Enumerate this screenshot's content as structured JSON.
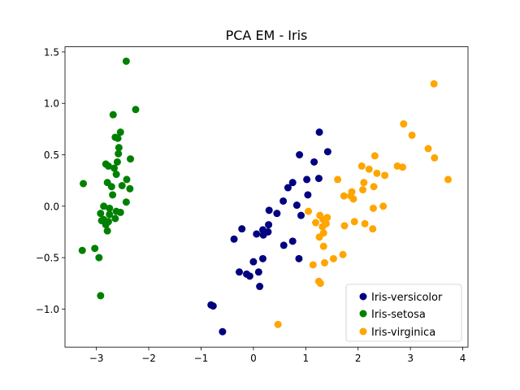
{
  "chart_data": {
    "type": "scatter",
    "title": "PCA EM - Iris",
    "xlabel": "",
    "ylabel": "",
    "xlim": [
      -3.6,
      4.1
    ],
    "ylim": [
      -1.37,
      1.55
    ],
    "xticks": [
      -3,
      -2,
      -1,
      0,
      1,
      2,
      3,
      4
    ],
    "xtick_labels": [
      "−3",
      "−2",
      "−1",
      "0",
      "1",
      "2",
      "3",
      "4"
    ],
    "yticks": [
      -1.0,
      -0.5,
      0.0,
      0.5,
      1.0,
      1.5
    ],
    "ytick_labels": [
      "−1.0",
      "−0.5",
      "0.0",
      "0.5",
      "1.0",
      "1.5"
    ],
    "grid": false,
    "legend_position": "lower-right",
    "series": [
      {
        "name": "Iris-versicolor",
        "color": "#000080",
        "points": [
          [
            1.26,
            0.72
          ],
          [
            1.42,
            0.53
          ],
          [
            1.16,
            0.43
          ],
          [
            0.88,
            0.5
          ],
          [
            1.02,
            0.26
          ],
          [
            1.25,
            0.27
          ],
          [
            0.75,
            0.23
          ],
          [
            0.66,
            0.18
          ],
          [
            0.57,
            0.05
          ],
          [
            1.04,
            0.11
          ],
          [
            0.83,
            0.01
          ],
          [
            0.91,
            -0.09
          ],
          [
            0.45,
            -0.07
          ],
          [
            0.3,
            -0.04
          ],
          [
            0.29,
            -0.18
          ],
          [
            0.06,
            -0.27
          ],
          [
            0.18,
            -0.23
          ],
          [
            0.19,
            -0.28
          ],
          [
            0.28,
            -0.25
          ],
          [
            -0.22,
            -0.22
          ],
          [
            -0.37,
            -0.32
          ],
          [
            0.58,
            -0.38
          ],
          [
            0.75,
            -0.34
          ],
          [
            0.87,
            -0.51
          ],
          [
            0.18,
            -0.51
          ],
          [
            0.0,
            -0.54
          ],
          [
            -0.27,
            -0.64
          ],
          [
            -0.13,
            -0.66
          ],
          [
            -0.07,
            -0.68
          ],
          [
            0.1,
            -0.64
          ],
          [
            0.12,
            -0.78
          ],
          [
            -0.81,
            -0.96
          ],
          [
            -0.77,
            -0.97
          ],
          [
            -0.59,
            -1.22
          ]
        ]
      },
      {
        "name": "Iris-setosa",
        "color": "#008000",
        "points": [
          [
            -2.43,
            1.41
          ],
          [
            -2.25,
            0.94
          ],
          [
            -2.68,
            0.89
          ],
          [
            -2.54,
            0.72
          ],
          [
            -2.64,
            0.67
          ],
          [
            -2.59,
            0.66
          ],
          [
            -2.57,
            0.57
          ],
          [
            -2.58,
            0.51
          ],
          [
            -2.6,
            0.43
          ],
          [
            -2.35,
            0.46
          ],
          [
            -2.82,
            0.41
          ],
          [
            -2.77,
            0.39
          ],
          [
            -2.66,
            0.37
          ],
          [
            -2.62,
            0.31
          ],
          [
            -2.42,
            0.26
          ],
          [
            -2.79,
            0.23
          ],
          [
            -2.51,
            0.2
          ],
          [
            -3.25,
            0.22
          ],
          [
            -2.71,
            0.19
          ],
          [
            -2.36,
            0.17
          ],
          [
            -2.69,
            0.11
          ],
          [
            -2.43,
            0.04
          ],
          [
            -2.86,
            0.0
          ],
          [
            -2.75,
            -0.02
          ],
          [
            -2.62,
            -0.05
          ],
          [
            -2.54,
            -0.06
          ],
          [
            -2.92,
            -0.07
          ],
          [
            -2.75,
            -0.08
          ],
          [
            -2.86,
            -0.13
          ],
          [
            -2.9,
            -0.14
          ],
          [
            -2.77,
            -0.15
          ],
          [
            -2.64,
            -0.12
          ],
          [
            -2.82,
            -0.18
          ],
          [
            -2.79,
            -0.24
          ],
          [
            -3.03,
            -0.41
          ],
          [
            -3.27,
            -0.43
          ],
          [
            -2.95,
            -0.5
          ],
          [
            -2.92,
            -0.87
          ]
        ]
      },
      {
        "name": "Iris-virginica",
        "color": "#FFA500",
        "points": [
          [
            3.45,
            1.19
          ],
          [
            2.87,
            0.8
          ],
          [
            3.03,
            0.69
          ],
          [
            3.34,
            0.56
          ],
          [
            3.46,
            0.47
          ],
          [
            2.32,
            0.49
          ],
          [
            2.75,
            0.39
          ],
          [
            2.85,
            0.38
          ],
          [
            2.07,
            0.39
          ],
          [
            2.21,
            0.36
          ],
          [
            2.36,
            0.32
          ],
          [
            2.51,
            0.3
          ],
          [
            3.72,
            0.26
          ],
          [
            1.61,
            0.26
          ],
          [
            2.11,
            0.23
          ],
          [
            2.3,
            0.19
          ],
          [
            2.09,
            0.16
          ],
          [
            1.88,
            0.14
          ],
          [
            1.73,
            0.1
          ],
          [
            1.86,
            0.1
          ],
          [
            1.91,
            0.07
          ],
          [
            2.48,
            0.0
          ],
          [
            2.29,
            -0.02
          ],
          [
            1.05,
            -0.05
          ],
          [
            1.41,
            -0.11
          ],
          [
            1.27,
            -0.09
          ],
          [
            1.33,
            -0.13
          ],
          [
            1.93,
            -0.15
          ],
          [
            1.74,
            -0.19
          ],
          [
            2.13,
            -0.17
          ],
          [
            1.19,
            -0.16
          ],
          [
            1.39,
            -0.17
          ],
          [
            1.32,
            -0.2
          ],
          [
            2.28,
            -0.22
          ],
          [
            1.34,
            -0.26
          ],
          [
            1.26,
            -0.3
          ],
          [
            1.34,
            -0.39
          ],
          [
            1.71,
            -0.47
          ],
          [
            1.53,
            -0.51
          ],
          [
            1.36,
            -0.55
          ],
          [
            1.14,
            -0.57
          ],
          [
            1.25,
            -0.73
          ],
          [
            1.28,
            -0.75
          ],
          [
            0.47,
            -1.15
          ]
        ]
      }
    ]
  }
}
